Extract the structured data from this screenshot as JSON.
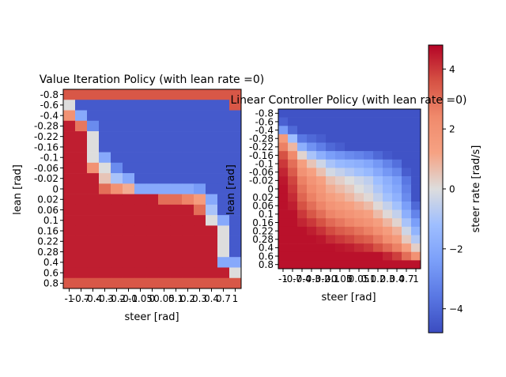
{
  "chart_data": [
    {
      "type": "heatmap",
      "title": "Value Iteration Policy (with lean rate =0)",
      "xlabel": "steer [rad]",
      "ylabel": "lean [rad]",
      "x_ticks": [
        "-1",
        "-0.7",
        "-0.4",
        "-0.3",
        "-0.2",
        "-0.1",
        "-0.05",
        "0",
        "0.05",
        "0.1",
        "0.2",
        "0.3",
        "0.4",
        "0.7",
        "1"
      ],
      "y_ticks": [
        "-0.8",
        "-0.6",
        "-0.4",
        "-0.28",
        "-0.22",
        "-0.16",
        "-0.1",
        "-0.06",
        "-0.02",
        "0",
        "0.02",
        "0.06",
        "0.1",
        "0.16",
        "0.22",
        "0.28",
        "0.4",
        "0.6",
        "0.8"
      ],
      "values": [
        [
          3.5,
          3.5,
          3.5,
          3.5,
          3.5,
          3.5,
          3.5,
          3.5,
          3.5,
          3.5,
          3.5,
          3.5,
          3.5,
          3.5,
          3.5
        ],
        [
          0,
          -4.4,
          -4.4,
          -4.4,
          -4.4,
          -4.4,
          -4.4,
          -4.4,
          -4.4,
          -4.4,
          -4.4,
          -4.4,
          -4.4,
          -4.4,
          3.5
        ],
        [
          2,
          -2,
          -4.4,
          -4.4,
          -4.4,
          -4.4,
          -4.4,
          -4.4,
          -4.4,
          -4.4,
          -4.4,
          -4.4,
          -4.4,
          -4.4,
          -4.4
        ],
        [
          4.4,
          2.8,
          -3,
          -4.4,
          -4.4,
          -4.4,
          -4.4,
          -4.4,
          -4.4,
          -4.4,
          -4.4,
          -4.4,
          -4.4,
          -4.4,
          -4.4
        ],
        [
          4.4,
          4.4,
          0,
          -4.4,
          -4.4,
          -4.4,
          -4.4,
          -4.4,
          -4.4,
          -4.4,
          -4.4,
          -4.4,
          -4.4,
          -4.4,
          -4.4
        ],
        [
          4.4,
          4.4,
          0,
          -4.4,
          -4.4,
          -4.4,
          -4.4,
          -4.4,
          -4.4,
          -4.4,
          -4.4,
          -4.4,
          -4.4,
          -4.4,
          -4.4
        ],
        [
          4.4,
          4.4,
          0,
          -2,
          -4.4,
          -4.4,
          -4.4,
          -4.4,
          -4.4,
          -4.4,
          -4.4,
          -4.4,
          -4.4,
          -4.4,
          -4.4
        ],
        [
          4.4,
          4.4,
          2,
          0,
          -3,
          -4.4,
          -4.4,
          -4.4,
          -4.4,
          -4.4,
          -4.4,
          -4.4,
          -4.4,
          -4.4,
          -4.4
        ],
        [
          4.4,
          4.4,
          4.4,
          0.5,
          -1,
          -2,
          -4.4,
          -4.4,
          -4.4,
          -4.4,
          -4.4,
          -4.4,
          -4.4,
          -4.4,
          -4.4
        ],
        [
          4.4,
          4.4,
          4.4,
          3,
          2,
          1,
          -2,
          -2,
          -2,
          -2,
          -2,
          -2.5,
          -4.4,
          -4.4,
          -4.4
        ],
        [
          4.4,
          4.4,
          4.4,
          4.4,
          4.4,
          4.4,
          4.4,
          4.4,
          3,
          3,
          2.5,
          1.5,
          -2,
          -4.4,
          -4.4
        ],
        [
          4.4,
          4.4,
          4.4,
          4.4,
          4.4,
          4.4,
          4.4,
          4.4,
          4.4,
          4.4,
          4.4,
          3,
          -1,
          -4.4,
          -4.4
        ],
        [
          4.4,
          4.4,
          4.4,
          4.4,
          4.4,
          4.4,
          4.4,
          4.4,
          4.4,
          4.4,
          4.4,
          4.4,
          0,
          -2,
          -4.4
        ],
        [
          4.4,
          4.4,
          4.4,
          4.4,
          4.4,
          4.4,
          4.4,
          4.4,
          4.4,
          4.4,
          4.4,
          4.4,
          4.4,
          0,
          -4.4
        ],
        [
          4.4,
          4.4,
          4.4,
          4.4,
          4.4,
          4.4,
          4.4,
          4.4,
          4.4,
          4.4,
          4.4,
          4.4,
          4.4,
          0,
          -4.4
        ],
        [
          4.4,
          4.4,
          4.4,
          4.4,
          4.4,
          4.4,
          4.4,
          4.4,
          4.4,
          4.4,
          4.4,
          4.4,
          4.4,
          0,
          -4.4
        ],
        [
          4.4,
          4.4,
          4.4,
          4.4,
          4.4,
          4.4,
          4.4,
          4.4,
          4.4,
          4.4,
          4.4,
          4.4,
          4.4,
          -2,
          -2
        ],
        [
          4.4,
          4.4,
          4.4,
          4.4,
          4.4,
          4.4,
          4.4,
          4.4,
          4.4,
          4.4,
          4.4,
          4.4,
          4.4,
          4.4,
          0
        ],
        [
          3.5,
          3.5,
          3.5,
          3.5,
          3.5,
          3.5,
          3.5,
          3.5,
          3.5,
          3.5,
          3.5,
          3.5,
          3.5,
          3.5,
          3.5
        ]
      ]
    },
    {
      "type": "heatmap",
      "title": "Linear Controller Policy (with lean rate =0)",
      "xlabel": "steer [rad]",
      "ylabel": "lean [rad]",
      "x_ticks": [
        "-1",
        "-0.7",
        "-0.4",
        "-0.3",
        "-0.2",
        "-0.1",
        "-0.05",
        "0",
        "0.05",
        "0.1",
        "0.2",
        "0.3",
        "0.4",
        "0.7",
        "1"
      ],
      "y_ticks": [
        "-0.8",
        "-0.6",
        "-0.4",
        "-0.28",
        "-0.22",
        "-0.16",
        "-0.1",
        "-0.06",
        "-0.02",
        "0",
        "0.02",
        "0.06",
        "0.1",
        "0.16",
        "0.22",
        "0.28",
        "0.4",
        "0.6",
        "0.8"
      ],
      "values": [
        [
          -4.6,
          -4.6,
          -4.6,
          -4.6,
          -4.6,
          -4.6,
          -4.6,
          -4.6,
          -4.6,
          -4.6,
          -4.6,
          -4.6,
          -4.6,
          -4.6,
          -4.6
        ],
        [
          -4.2,
          -4.6,
          -4.6,
          -4.6,
          -4.6,
          -4.6,
          -4.6,
          -4.6,
          -4.6,
          -4.6,
          -4.6,
          -4.6,
          -4.6,
          -4.6,
          -4.6
        ],
        [
          -2.5,
          -4,
          -4.6,
          -4.6,
          -4.6,
          -4.6,
          -4.6,
          -4.6,
          -4.6,
          -4.6,
          -4.6,
          -4.6,
          -4.6,
          -4.6,
          -4.6
        ],
        [
          1.6,
          -1.2,
          -3.6,
          -4,
          -4.3,
          -4.6,
          -4.6,
          -4.6,
          -4.6,
          -4.6,
          -4.6,
          -4.6,
          -4.6,
          -4.6,
          -4.6
        ],
        [
          2.6,
          0.8,
          -1.8,
          -2.8,
          -3.4,
          -4,
          -4.3,
          -4.6,
          -4.6,
          -4.6,
          -4.6,
          -4.6,
          -4.6,
          -4.6,
          -4.6
        ],
        [
          3.6,
          2.4,
          0.2,
          -1,
          -1.8,
          -2.4,
          -2.7,
          -3,
          -3.2,
          -3.5,
          -4,
          -4.4,
          -4.6,
          -4.6,
          -4.6
        ],
        [
          4,
          3,
          1.4,
          0.5,
          -0.3,
          -1,
          -1.4,
          -1.6,
          -1.8,
          -2.1,
          -2.6,
          -3.2,
          -3.8,
          -4.6,
          -4.6
        ],
        [
          4.3,
          3.4,
          2,
          1.3,
          0.6,
          -0.2,
          -0.5,
          -0.8,
          -1.1,
          -1.4,
          -2,
          -2.6,
          -3.1,
          -4.3,
          -4.6
        ],
        [
          4.5,
          3.8,
          2.6,
          1.9,
          1.3,
          0.6,
          0.3,
          0,
          -0.3,
          -0.6,
          -1.2,
          -1.8,
          -2.4,
          -3.6,
          -4.6
        ],
        [
          4.6,
          4,
          2.9,
          2.3,
          1.7,
          1,
          0.7,
          0.4,
          0,
          -0.3,
          -0.9,
          -1.5,
          -2.1,
          -3.3,
          -4.6
        ],
        [
          4.6,
          4.2,
          3.2,
          2.6,
          2,
          1.4,
          1.1,
          0.8,
          0.4,
          0.1,
          -0.5,
          -1.1,
          -1.7,
          -3,
          -4.6
        ],
        [
          4.6,
          4.4,
          3.6,
          3,
          2.5,
          1.9,
          1.6,
          1.3,
          1,
          0.7,
          0.1,
          -0.5,
          -1.1,
          -2.4,
          -4
        ],
        [
          4.6,
          4.6,
          4,
          3.5,
          3,
          2.5,
          2.2,
          1.9,
          1.6,
          1.3,
          0.7,
          0.1,
          -0.5,
          -1.8,
          -3.2
        ],
        [
          4.6,
          4.6,
          4.3,
          4,
          3.6,
          3.1,
          2.8,
          2.5,
          2.2,
          1.9,
          1.4,
          0.8,
          0.2,
          -1,
          -2.4
        ],
        [
          4.6,
          4.6,
          4.6,
          4.4,
          4.1,
          3.7,
          3.4,
          3.2,
          2.9,
          2.6,
          2.1,
          1.5,
          0.9,
          -0.3,
          -1.6
        ],
        [
          4.6,
          4.6,
          4.6,
          4.6,
          4.5,
          4.2,
          4,
          3.8,
          3.5,
          3.3,
          2.8,
          2.2,
          1.6,
          0.4,
          -0.8
        ],
        [
          4.6,
          4.6,
          4.6,
          4.6,
          4.6,
          4.6,
          4.5,
          4.4,
          4.2,
          4,
          3.6,
          3.1,
          2.6,
          1.4,
          0.3
        ],
        [
          4.6,
          4.6,
          4.6,
          4.6,
          4.6,
          4.6,
          4.6,
          4.6,
          4.6,
          4.6,
          4.6,
          4.3,
          3.9,
          3,
          2
        ],
        [
          4.6,
          4.6,
          4.6,
          4.6,
          4.6,
          4.6,
          4.6,
          4.6,
          4.6,
          4.6,
          4.6,
          4.6,
          4.6,
          4.6,
          4.6
        ]
      ]
    }
  ],
  "colorbar": {
    "label": "steer rate [rad/s]",
    "range": [
      -4.8,
      4.8
    ],
    "ticks": [
      "4",
      "2",
      "0",
      "−2",
      "−4"
    ],
    "tick_values": [
      4,
      2,
      0,
      -2,
      -4
    ],
    "colormap": "coolwarm"
  }
}
